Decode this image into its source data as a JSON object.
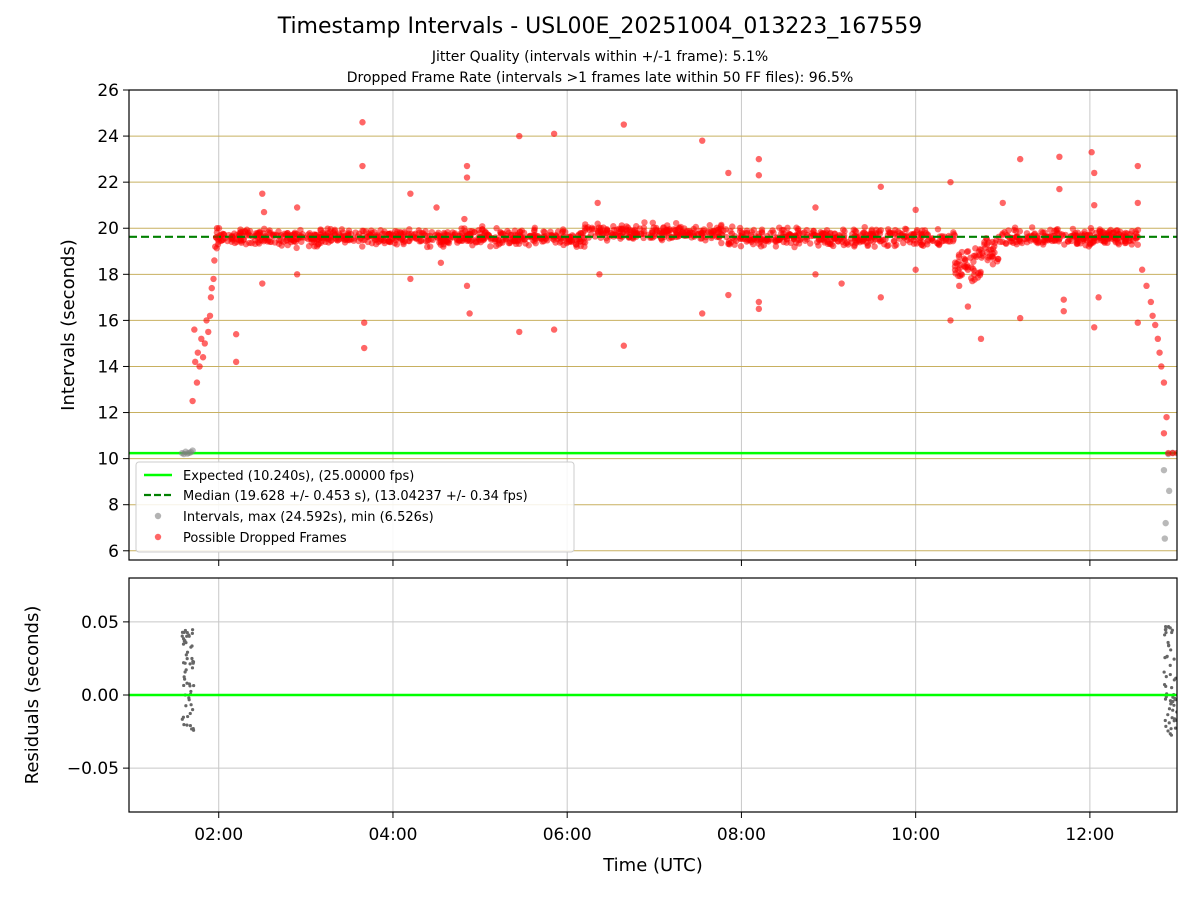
{
  "chart_data": [
    {
      "type": "scatter",
      "title": "Timestamp Intervals - USL00E_20251004_013223_167559",
      "subtitle_1": "Jitter Quality (intervals within +/-1 frame): 5.1%",
      "subtitle_2": "Dropped Frame Rate (intervals >1 frames late within 50 FF files): 96.5%",
      "ylabel": "Intervals (seconds)",
      "xlim_hours": [
        0.97,
        13.0
      ],
      "ylim": [
        5.6,
        26
      ],
      "y_ticks": [
        6,
        8,
        10,
        12,
        14,
        16,
        18,
        20,
        22,
        24,
        26
      ],
      "y_tick_labels": [
        "6",
        "8",
        "10",
        "12",
        "14",
        "16",
        "18",
        "20",
        "22",
        "24",
        "26"
      ],
      "grid": true,
      "legend_placement": "lower-left",
      "expected_interval": 10.24,
      "median_interval": 19.628,
      "colors": {
        "expected": "#00ff00",
        "median": "#008000",
        "intervals": "#808080",
        "dropped": "#ff0000",
        "grid_horizontal": "#c8b060",
        "grid_vertical": "#c8c8c8"
      },
      "legend": [
        "Expected (10.240s), (25.00000 fps)",
        "Median (19.628 +/- 0.453 s), (13.04237 +/- 0.34 fps)",
        "Intervals, max (24.592s), min (6.526s)",
        "Possible Dropped Frames"
      ],
      "series": [
        {
          "name": "Intervals, max (24.592s), min (6.526s)",
          "points": [
            [
              1.58,
              10.24
            ],
            [
              1.6,
              10.2
            ],
            [
              1.62,
              10.3
            ],
            [
              1.64,
              10.22
            ],
            [
              1.66,
              10.25
            ],
            [
              1.68,
              10.28
            ],
            [
              1.7,
              10.35
            ],
            [
              12.85,
              9.5
            ],
            [
              12.87,
              7.2
            ],
            [
              12.86,
              6.53
            ],
            [
              12.91,
              8.6
            ],
            [
              12.9,
              10.2
            ],
            [
              12.95,
              10.25
            ]
          ]
        },
        {
          "name": "Possible Dropped Frames",
          "points": [
            [
              1.7,
              12.5
            ],
            [
              1.72,
              15.6
            ],
            [
              1.73,
              14.2
            ],
            [
              1.75,
              13.3
            ],
            [
              1.76,
              14.6
            ],
            [
              1.78,
              14.0
            ],
            [
              1.8,
              15.2
            ],
            [
              1.82,
              14.4
            ],
            [
              1.84,
              15.0
            ],
            [
              1.86,
              16.0
            ],
            [
              1.88,
              15.5
            ],
            [
              1.9,
              16.2
            ],
            [
              1.91,
              17.0
            ],
            [
              1.92,
              17.4
            ],
            [
              1.94,
              17.8
            ],
            [
              1.95,
              18.6
            ],
            [
              1.96,
              19.2
            ],
            [
              1.97,
              19.6
            ],
            [
              1.98,
              20.0
            ],
            [
              2.05,
              19.5
            ],
            [
              2.15,
              19.6
            ],
            [
              2.2,
              15.4
            ],
            [
              2.2,
              14.2
            ],
            [
              2.5,
              21.5
            ],
            [
              2.52,
              20.7
            ],
            [
              2.5,
              17.6
            ],
            [
              2.9,
              20.9
            ],
            [
              2.9,
              18.0
            ],
            [
              3.65,
              24.6
            ],
            [
              3.65,
              22.7
            ],
            [
              3.67,
              15.9
            ],
            [
              3.67,
              14.8
            ],
            [
              4.2,
              21.5
            ],
            [
              4.2,
              17.8
            ],
            [
              4.5,
              20.9
            ],
            [
              4.55,
              18.5
            ],
            [
              4.85,
              22.7
            ],
            [
              4.85,
              22.2
            ],
            [
              4.82,
              20.4
            ],
            [
              4.85,
              17.5
            ],
            [
              4.88,
              16.3
            ],
            [
              5.45,
              24.0
            ],
            [
              5.45,
              15.5
            ],
            [
              5.85,
              24.1
            ],
            [
              5.85,
              15.6
            ],
            [
              6.35,
              21.1
            ],
            [
              6.37,
              18.0
            ],
            [
              6.65,
              24.5
            ],
            [
              6.65,
              14.9
            ],
            [
              7.55,
              23.8
            ],
            [
              7.55,
              16.3
            ],
            [
              7.85,
              22.4
            ],
            [
              7.85,
              17.1
            ],
            [
              8.2,
              23.0
            ],
            [
              8.2,
              22.3
            ],
            [
              8.2,
              16.8
            ],
            [
              8.2,
              16.5
            ],
            [
              8.85,
              20.9
            ],
            [
              8.85,
              18.0
            ],
            [
              9.15,
              17.6
            ],
            [
              9.6,
              21.8
            ],
            [
              9.6,
              17.0
            ],
            [
              10.0,
              20.8
            ],
            [
              10.0,
              18.2
            ],
            [
              10.4,
              22.0
            ],
            [
              10.4,
              16.0
            ],
            [
              10.5,
              17.5
            ],
            [
              10.6,
              16.6
            ],
            [
              10.75,
              15.2
            ],
            [
              10.6,
              18.2
            ],
            [
              11.0,
              21.1
            ],
            [
              11.2,
              23.0
            ],
            [
              11.2,
              16.1
            ],
            [
              11.65,
              23.1
            ],
            [
              11.65,
              21.7
            ],
            [
              11.7,
              16.9
            ],
            [
              11.7,
              16.4
            ],
            [
              12.02,
              23.3
            ],
            [
              12.05,
              22.4
            ],
            [
              12.05,
              21.0
            ],
            [
              12.05,
              15.7
            ],
            [
              12.1,
              17.0
            ],
            [
              12.55,
              22.7
            ],
            [
              12.55,
              21.1
            ],
            [
              12.55,
              15.9
            ],
            [
              12.6,
              18.2
            ],
            [
              12.65,
              17.5
            ],
            [
              12.7,
              16.8
            ],
            [
              12.72,
              16.2
            ],
            [
              12.75,
              15.8
            ],
            [
              12.78,
              15.2
            ],
            [
              12.8,
              14.6
            ],
            [
              12.82,
              14.0
            ],
            [
              12.85,
              13.3
            ],
            [
              12.88,
              11.8
            ],
            [
              12.85,
              11.1
            ],
            [
              12.9,
              10.24
            ],
            [
              12.95,
              10.24
            ],
            [
              13.0,
              10.24
            ]
          ]
        }
      ],
      "x_axis_line": {
        "dense_band_center": 19.6,
        "dense_band_spread": 0.35
      }
    },
    {
      "type": "scatter",
      "xlabel": "Time (UTC)",
      "ylabel": "Residuals (seconds)",
      "xlim_hours": [
        0.97,
        13.0
      ],
      "ylim": [
        -0.08,
        0.08
      ],
      "y_ticks": [
        -0.05,
        0.0,
        0.05
      ],
      "y_tick_labels": [
        "−0.05",
        "0.00",
        "0.05"
      ],
      "x_ticks_hours": [
        2,
        4,
        6,
        8,
        10,
        12
      ],
      "x_tick_labels": [
        "02:00",
        "04:00",
        "06:00",
        "08:00",
        "10:00",
        "12:00"
      ],
      "grid": true,
      "residual_clusters": [
        {
          "x_range": [
            1.58,
            1.72
          ],
          "y_range": [
            -0.025,
            0.045
          ]
        },
        {
          "x_range": [
            12.85,
            13.0
          ],
          "y_range": [
            -0.028,
            0.048
          ]
        }
      ]
    }
  ]
}
